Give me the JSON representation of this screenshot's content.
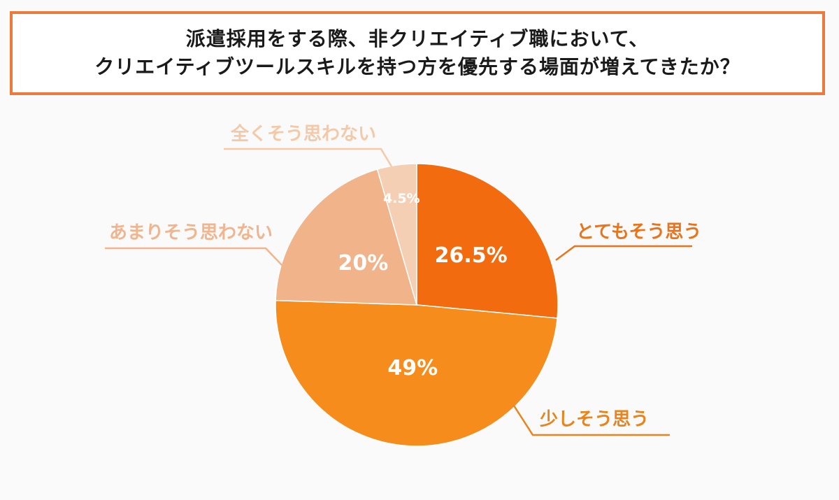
{
  "title": {
    "line1": "派遣採用をする際、非クリエイティブ職において、",
    "line2": "クリエイティブツールスキルを持つ方を優先する場面が増えてきたか？"
  },
  "colors": {
    "frame": "#ec7a3c",
    "text_dark": "#1a1a1a"
  },
  "chart_data": {
    "type": "pie",
    "start": "12 o'clock",
    "direction": "clockwise",
    "slices": [
      {
        "label": "とてもそう思う",
        "value": 26.5,
        "value_label": "26.5%",
        "color": "#f26b0f",
        "label_color": "#e8741c"
      },
      {
        "label": "少しそう思う",
        "value": 49,
        "value_label": "49%",
        "color": "#f68c1c",
        "label_color": "#e8841c"
      },
      {
        "label": "あまりそう思わない",
        "value": 20,
        "value_label": "20%",
        "color": "#f1b38a",
        "label_color": "#f0b58e"
      },
      {
        "label": "全くそう思わない",
        "value": 4.5,
        "value_label": "4.5%",
        "color": "#f5cfb4",
        "label_color": "#f4c9a8"
      }
    ]
  }
}
